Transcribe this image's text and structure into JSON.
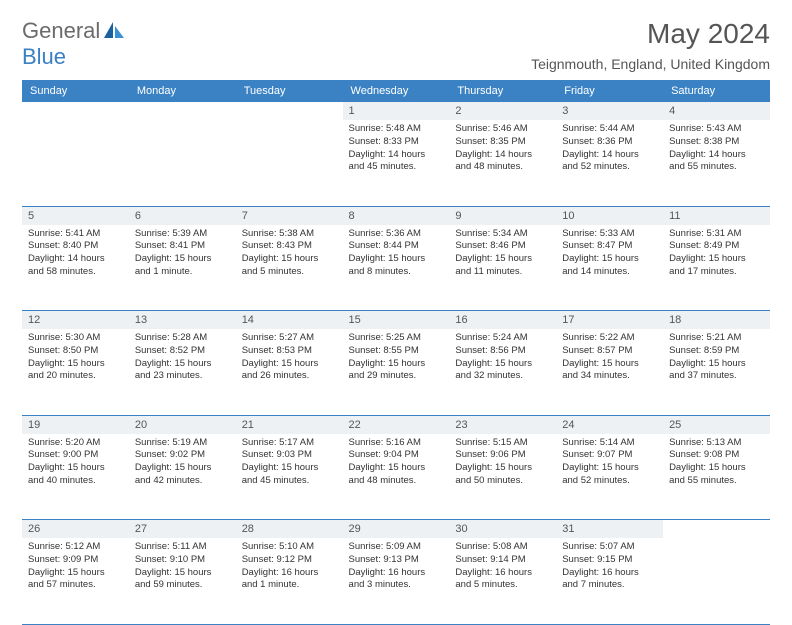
{
  "brand": {
    "part1": "General",
    "part2": "Blue"
  },
  "title": "May 2024",
  "location": "Teignmouth, England, United Kingdom",
  "colors": {
    "header_bg": "#3b82c4",
    "header_text": "#ffffff",
    "daynum_bg": "#eef1f3",
    "row_border": "#3b82c4",
    "body_text": "#333333",
    "title_text": "#555555",
    "logo_gray": "#6b6b6b",
    "logo_blue": "#3b7fc4"
  },
  "weekdays": [
    "Sunday",
    "Monday",
    "Tuesday",
    "Wednesday",
    "Thursday",
    "Friday",
    "Saturday"
  ],
  "weeks": [
    [
      null,
      null,
      null,
      {
        "n": "1",
        "sr": "5:48 AM",
        "ss": "8:33 PM",
        "dl": "14 hours and 45 minutes."
      },
      {
        "n": "2",
        "sr": "5:46 AM",
        "ss": "8:35 PM",
        "dl": "14 hours and 48 minutes."
      },
      {
        "n": "3",
        "sr": "5:44 AM",
        "ss": "8:36 PM",
        "dl": "14 hours and 52 minutes."
      },
      {
        "n": "4",
        "sr": "5:43 AM",
        "ss": "8:38 PM",
        "dl": "14 hours and 55 minutes."
      }
    ],
    [
      {
        "n": "5",
        "sr": "5:41 AM",
        "ss": "8:40 PM",
        "dl": "14 hours and 58 minutes."
      },
      {
        "n": "6",
        "sr": "5:39 AM",
        "ss": "8:41 PM",
        "dl": "15 hours and 1 minute."
      },
      {
        "n": "7",
        "sr": "5:38 AM",
        "ss": "8:43 PM",
        "dl": "15 hours and 5 minutes."
      },
      {
        "n": "8",
        "sr": "5:36 AM",
        "ss": "8:44 PM",
        "dl": "15 hours and 8 minutes."
      },
      {
        "n": "9",
        "sr": "5:34 AM",
        "ss": "8:46 PM",
        "dl": "15 hours and 11 minutes."
      },
      {
        "n": "10",
        "sr": "5:33 AM",
        "ss": "8:47 PM",
        "dl": "15 hours and 14 minutes."
      },
      {
        "n": "11",
        "sr": "5:31 AM",
        "ss": "8:49 PM",
        "dl": "15 hours and 17 minutes."
      }
    ],
    [
      {
        "n": "12",
        "sr": "5:30 AM",
        "ss": "8:50 PM",
        "dl": "15 hours and 20 minutes."
      },
      {
        "n": "13",
        "sr": "5:28 AM",
        "ss": "8:52 PM",
        "dl": "15 hours and 23 minutes."
      },
      {
        "n": "14",
        "sr": "5:27 AM",
        "ss": "8:53 PM",
        "dl": "15 hours and 26 minutes."
      },
      {
        "n": "15",
        "sr": "5:25 AM",
        "ss": "8:55 PM",
        "dl": "15 hours and 29 minutes."
      },
      {
        "n": "16",
        "sr": "5:24 AM",
        "ss": "8:56 PM",
        "dl": "15 hours and 32 minutes."
      },
      {
        "n": "17",
        "sr": "5:22 AM",
        "ss": "8:57 PM",
        "dl": "15 hours and 34 minutes."
      },
      {
        "n": "18",
        "sr": "5:21 AM",
        "ss": "8:59 PM",
        "dl": "15 hours and 37 minutes."
      }
    ],
    [
      {
        "n": "19",
        "sr": "5:20 AM",
        "ss": "9:00 PM",
        "dl": "15 hours and 40 minutes."
      },
      {
        "n": "20",
        "sr": "5:19 AM",
        "ss": "9:02 PM",
        "dl": "15 hours and 42 minutes."
      },
      {
        "n": "21",
        "sr": "5:17 AM",
        "ss": "9:03 PM",
        "dl": "15 hours and 45 minutes."
      },
      {
        "n": "22",
        "sr": "5:16 AM",
        "ss": "9:04 PM",
        "dl": "15 hours and 48 minutes."
      },
      {
        "n": "23",
        "sr": "5:15 AM",
        "ss": "9:06 PM",
        "dl": "15 hours and 50 minutes."
      },
      {
        "n": "24",
        "sr": "5:14 AM",
        "ss": "9:07 PM",
        "dl": "15 hours and 52 minutes."
      },
      {
        "n": "25",
        "sr": "5:13 AM",
        "ss": "9:08 PM",
        "dl": "15 hours and 55 minutes."
      }
    ],
    [
      {
        "n": "26",
        "sr": "5:12 AM",
        "ss": "9:09 PM",
        "dl": "15 hours and 57 minutes."
      },
      {
        "n": "27",
        "sr": "5:11 AM",
        "ss": "9:10 PM",
        "dl": "15 hours and 59 minutes."
      },
      {
        "n": "28",
        "sr": "5:10 AM",
        "ss": "9:12 PM",
        "dl": "16 hours and 1 minute."
      },
      {
        "n": "29",
        "sr": "5:09 AM",
        "ss": "9:13 PM",
        "dl": "16 hours and 3 minutes."
      },
      {
        "n": "30",
        "sr": "5:08 AM",
        "ss": "9:14 PM",
        "dl": "16 hours and 5 minutes."
      },
      {
        "n": "31",
        "sr": "5:07 AM",
        "ss": "9:15 PM",
        "dl": "16 hours and 7 minutes."
      },
      null
    ]
  ],
  "labels": {
    "sunrise": "Sunrise:",
    "sunset": "Sunset:",
    "daylight": "Daylight:"
  }
}
